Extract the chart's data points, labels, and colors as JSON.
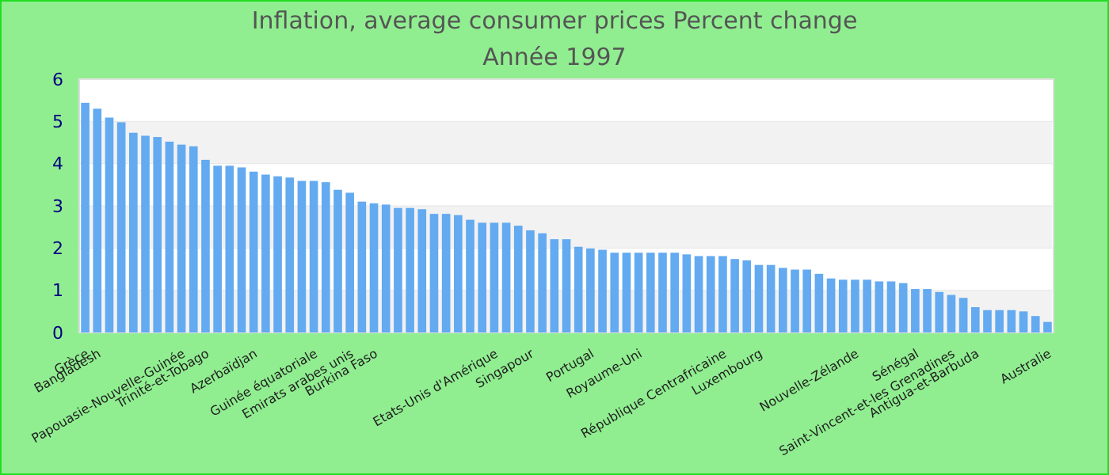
{
  "chart_data": {
    "type": "bar",
    "title": "Inflation, average consumer prices  Percent change",
    "subtitle": "Année 1997",
    "categories": [
      "Grèce",
      "Bangladesh",
      null,
      null,
      null,
      null,
      null,
      null,
      "Papouasie-Nouvelle-Guinée",
      null,
      "Trinité-et-Tobago",
      null,
      null,
      null,
      "Azerbaïdjan",
      null,
      null,
      null,
      null,
      "Guinée équatoriale",
      null,
      null,
      "Emirats arabes unis",
      null,
      "Burkina Faso",
      null,
      null,
      null,
      null,
      null,
      null,
      null,
      null,
      null,
      "Etats-Unis d'Amérique",
      null,
      null,
      "Singapour",
      null,
      null,
      null,
      null,
      "Portugal",
      null,
      null,
      null,
      "Royaume-Uni",
      null,
      null,
      null,
      null,
      null,
      null,
      "République Centrafricaine",
      null,
      null,
      "Luxembourg",
      null,
      null,
      null,
      null,
      null,
      null,
      null,
      "Nouvelle-Zélande",
      null,
      null,
      null,
      null,
      "Sénégal",
      null,
      null,
      "Saint-Vincent-et-les Grenadines",
      null,
      "Antigua-et-Barbuda",
      null,
      null,
      null,
      null,
      null,
      "Australie"
    ],
    "values": [
      5.44,
      5.3,
      5.09,
      4.98,
      4.73,
      4.66,
      4.63,
      4.52,
      4.45,
      4.41,
      4.09,
      3.95,
      3.95,
      3.91,
      3.81,
      3.74,
      3.7,
      3.67,
      3.59,
      3.59,
      3.56,
      3.38,
      3.31,
      3.1,
      3.06,
      3.03,
      2.95,
      2.95,
      2.92,
      2.81,
      2.81,
      2.78,
      2.67,
      2.6,
      2.6,
      2.6,
      2.53,
      2.42,
      2.35,
      2.21,
      2.21,
      2.03,
      1.99,
      1.96,
      1.89,
      1.89,
      1.89,
      1.89,
      1.89,
      1.89,
      1.85,
      1.81,
      1.81,
      1.81,
      1.74,
      1.71,
      1.6,
      1.6,
      1.53,
      1.49,
      1.49,
      1.39,
      1.28,
      1.25,
      1.25,
      1.25,
      1.21,
      1.21,
      1.17,
      1.03,
      1.03,
      0.96,
      0.89,
      0.82,
      0.6,
      0.53,
      0.53,
      0.53,
      0.5,
      0.39,
      0.25
    ],
    "color": "#63aaf0",
    "ylim": [
      0,
      6
    ],
    "yticks": [
      0,
      1,
      2,
      3,
      4,
      5,
      6
    ],
    "grid": "y"
  }
}
